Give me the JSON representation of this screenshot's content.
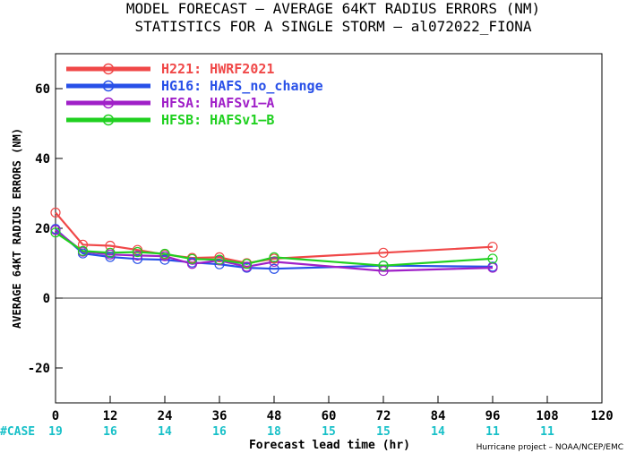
{
  "chart_data": {
    "type": "line",
    "title": "MODEL FORECAST – AVERAGE 64KT RADIUS ERRORS (NM)",
    "subtitle": "STATISTICS FOR A SINGLE STORM – al072022_FIONA",
    "xlabel": "Forecast lead time (hr)",
    "ylabel": "AVERAGE 64KT RADIUS ERRORS (NM)",
    "xlim": [
      0,
      120
    ],
    "ylim": [
      -30,
      70
    ],
    "xticks": [
      0,
      12,
      24,
      36,
      48,
      60,
      72,
      84,
      96,
      108,
      120
    ],
    "yticks": [
      -20,
      0,
      20,
      40,
      60
    ],
    "grid": false,
    "legend_position": "top-left",
    "case_label": "#CASE",
    "cases": [
      {
        "x": 0,
        "n": "19"
      },
      {
        "x": 12,
        "n": "16"
      },
      {
        "x": 24,
        "n": "14"
      },
      {
        "x": 36,
        "n": "16"
      },
      {
        "x": 48,
        "n": "18"
      },
      {
        "x": 60,
        "n": "15"
      },
      {
        "x": 72,
        "n": "15"
      },
      {
        "x": 84,
        "n": "14"
      },
      {
        "x": 96,
        "n": "11"
      },
      {
        "x": 108,
        "n": "11"
      }
    ],
    "credit": "Hurricane project – NOAA/NCEP/EMC",
    "series": [
      {
        "name": "H221: HWRF2021",
        "color": "#f04848",
        "x": [
          0,
          6,
          12,
          18,
          24,
          30,
          36,
          42,
          48,
          72,
          96
        ],
        "values": [
          24.5,
          15.3,
          15.0,
          13.8,
          12.5,
          11.5,
          11.7,
          10.0,
          11.3,
          13.0,
          14.7
        ]
      },
      {
        "name": "HG16: HAFS_no_change",
        "color": "#2850e8",
        "x": [
          0,
          6,
          12,
          18,
          24,
          30,
          36,
          42,
          48,
          72,
          96
        ],
        "values": [
          19.8,
          12.8,
          11.8,
          11.2,
          11.0,
          10.2,
          9.7,
          8.7,
          8.4,
          9.3,
          9.0
        ]
      },
      {
        "name": "HFSA: HAFSv1–A",
        "color": "#a020c8",
        "x": [
          0,
          6,
          12,
          18,
          24,
          30,
          36,
          42,
          48,
          72,
          96
        ],
        "values": [
          19.5,
          13.3,
          12.5,
          12.2,
          12.0,
          9.8,
          10.8,
          9.0,
          10.4,
          7.8,
          8.7
        ]
      },
      {
        "name": "HFSB: HAFSv1–B",
        "color": "#20d020",
        "x": [
          0,
          6,
          12,
          18,
          24,
          30,
          36,
          42,
          48,
          72,
          96
        ],
        "values": [
          18.8,
          13.5,
          13.0,
          13.2,
          12.7,
          11.2,
          11.0,
          9.8,
          11.7,
          9.3,
          11.3
        ]
      }
    ]
  }
}
